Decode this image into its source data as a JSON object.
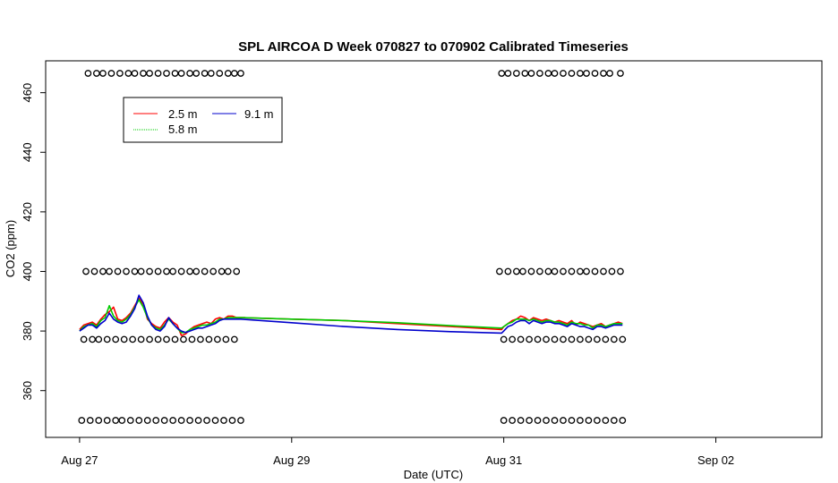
{
  "chart_data": {
    "type": "line",
    "title": "SPL AIRCOA D  Week 070827 to 070902  Calibrated Timeseries",
    "xlabel": "Date (UTC)",
    "ylabel": "CO2 (ppm)",
    "x_unit": "days since Aug 27 00:00 UTC",
    "xlim": [
      -0.32,
      7.0
    ],
    "ylim": [
      344.3,
      470.7
    ],
    "x_ticks": [
      {
        "value": 0,
        "label": "Aug 27"
      },
      {
        "value": 2,
        "label": "Aug 29"
      },
      {
        "value": 4,
        "label": "Aug 31"
      },
      {
        "value": 6,
        "label": "Sep 02"
      }
    ],
    "y_ticks": [
      360,
      380,
      400,
      420,
      440,
      460
    ],
    "grid": false,
    "legend_position": "top-left",
    "series": [
      {
        "name": "2.5 m",
        "color": "#ff0000",
        "x": [
          0.0,
          0.04,
          0.08,
          0.12,
          0.16,
          0.2,
          0.24,
          0.28,
          0.32,
          0.36,
          0.4,
          0.44,
          0.48,
          0.52,
          0.56,
          0.6,
          0.64,
          0.68,
          0.72,
          0.76,
          0.8,
          0.84,
          0.88,
          0.92,
          0.96,
          1.0,
          1.04,
          1.08,
          1.12,
          1.16,
          1.2,
          1.24,
          1.28,
          1.32,
          1.36,
          1.4,
          1.44,
          1.48,
          1.52,
          1.56,
          1.5,
          2.0,
          2.5,
          3.0,
          3.5,
          3.98,
          4.0,
          4.04,
          4.08,
          4.12,
          4.16,
          4.2,
          4.24,
          4.28,
          4.32,
          4.36,
          4.4,
          4.44,
          4.48,
          4.52,
          4.56,
          4.6,
          4.64,
          4.68,
          4.72,
          4.76,
          4.8,
          4.84,
          4.88,
          4.92,
          4.96,
          5.0,
          5.04,
          5.08,
          5.12
        ],
        "y": [
          380.5,
          382.0,
          382.5,
          383.0,
          382.0,
          384.0,
          385.5,
          386.5,
          388.0,
          384.0,
          383.5,
          384.5,
          386.0,
          388.5,
          391.0,
          389.0,
          384.0,
          382.5,
          381.5,
          381.0,
          383.0,
          384.5,
          383.0,
          382.0,
          378.5,
          379.0,
          380.5,
          381.5,
          382.0,
          382.5,
          383.0,
          382.5,
          384.0,
          384.5,
          384.0,
          385.0,
          385.0,
          384.5,
          384.5,
          384.5,
          384.5,
          384.0,
          383.5,
          382.5,
          381.5,
          380.5,
          381.5,
          382.5,
          383.5,
          384.0,
          385.0,
          384.5,
          383.5,
          384.5,
          384.0,
          383.5,
          384.0,
          383.5,
          383.0,
          383.5,
          383.0,
          382.5,
          383.5,
          382.0,
          383.0,
          382.5,
          382.0,
          381.5,
          382.0,
          382.5,
          381.5,
          382.0,
          382.5,
          383.0,
          382.5
        ]
      },
      {
        "name": "5.8 m",
        "color": "#00cc00",
        "x": [
          0.0,
          0.04,
          0.08,
          0.12,
          0.16,
          0.2,
          0.24,
          0.28,
          0.32,
          0.36,
          0.4,
          0.44,
          0.48,
          0.52,
          0.56,
          0.6,
          0.64,
          0.68,
          0.72,
          0.76,
          0.8,
          0.84,
          0.88,
          0.92,
          0.96,
          1.0,
          1.04,
          1.08,
          1.12,
          1.16,
          1.2,
          1.24,
          1.28,
          1.32,
          1.36,
          1.4,
          1.44,
          1.48,
          1.52,
          2.0,
          2.5,
          3.0,
          3.5,
          3.98,
          4.0,
          4.04,
          4.08,
          4.12,
          4.16,
          4.2,
          4.24,
          4.28,
          4.32,
          4.36,
          4.4,
          4.44,
          4.48,
          4.52,
          4.56,
          4.6,
          4.64,
          4.68,
          4.72,
          4.76,
          4.8,
          4.84,
          4.88,
          4.92,
          4.96,
          5.0,
          5.04,
          5.08,
          5.12
        ],
        "y": [
          380.0,
          381.5,
          382.0,
          382.5,
          381.5,
          383.5,
          384.5,
          388.5,
          385.0,
          383.5,
          383.0,
          384.0,
          385.5,
          388.0,
          390.5,
          388.0,
          384.5,
          382.0,
          381.0,
          380.5,
          382.0,
          384.0,
          382.5,
          381.0,
          379.5,
          379.5,
          380.5,
          381.0,
          381.5,
          382.0,
          382.0,
          382.5,
          383.0,
          384.0,
          384.0,
          384.5,
          384.5,
          384.5,
          384.5,
          384.0,
          383.5,
          382.8,
          381.8,
          381.0,
          381.5,
          382.5,
          383.0,
          384.0,
          384.0,
          384.0,
          383.5,
          384.0,
          383.5,
          383.0,
          383.5,
          383.5,
          383.0,
          383.0,
          382.5,
          382.0,
          383.0,
          382.5,
          382.5,
          382.0,
          382.0,
          381.0,
          382.0,
          382.0,
          381.5,
          382.0,
          382.5,
          382.5,
          382.5
        ]
      },
      {
        "name": "9.1 m",
        "color": "#0000cc",
        "x": [
          0.0,
          0.04,
          0.08,
          0.12,
          0.16,
          0.2,
          0.24,
          0.28,
          0.32,
          0.36,
          0.4,
          0.44,
          0.48,
          0.52,
          0.56,
          0.6,
          0.64,
          0.68,
          0.72,
          0.76,
          0.8,
          0.84,
          0.88,
          0.92,
          0.96,
          1.0,
          1.04,
          1.08,
          1.12,
          1.16,
          1.2,
          1.24,
          1.28,
          1.32,
          1.36,
          1.4,
          1.44,
          1.48,
          1.52,
          2.0,
          2.5,
          3.0,
          3.5,
          3.98,
          4.0,
          4.04,
          4.08,
          4.12,
          4.16,
          4.2,
          4.24,
          4.28,
          4.32,
          4.36,
          4.4,
          4.44,
          4.48,
          4.52,
          4.56,
          4.6,
          4.64,
          4.68,
          4.72,
          4.76,
          4.8,
          4.84,
          4.88,
          4.92,
          4.96,
          5.0,
          5.04,
          5.08,
          5.12
        ],
        "y": [
          380.0,
          381.0,
          382.0,
          382.0,
          381.0,
          382.5,
          383.5,
          386.0,
          384.0,
          383.0,
          382.5,
          383.0,
          385.0,
          387.5,
          392.0,
          389.5,
          385.0,
          382.0,
          380.5,
          380.0,
          381.5,
          384.5,
          382.5,
          381.0,
          380.0,
          379.5,
          380.0,
          380.5,
          381.0,
          381.0,
          381.5,
          382.0,
          382.5,
          383.5,
          384.0,
          384.0,
          384.0,
          384.0,
          384.0,
          382.8,
          381.5,
          380.5,
          379.8,
          379.3,
          380.0,
          381.5,
          382.0,
          383.0,
          383.5,
          383.5,
          382.5,
          383.5,
          383.0,
          382.5,
          383.0,
          383.0,
          382.5,
          382.5,
          382.0,
          381.5,
          382.5,
          382.0,
          381.5,
          381.5,
          381.0,
          380.5,
          381.5,
          381.5,
          381.0,
          381.5,
          382.0,
          382.0,
          382.0
        ]
      }
    ],
    "markers": {
      "symbol": "open-circle",
      "color": "#000000",
      "groups": [
        {
          "y": 466.5,
          "x": [
            0.08,
            0.16,
            0.22,
            0.3,
            0.38,
            0.46,
            0.52,
            0.6,
            0.66,
            0.74,
            0.82,
            0.9,
            0.96,
            1.04,
            1.1,
            1.18,
            1.24,
            1.32,
            1.4,
            1.46,
            1.52,
            3.98,
            4.04,
            4.12,
            4.2,
            4.26,
            4.34,
            4.42,
            4.48,
            4.56,
            4.64,
            4.72,
            4.78,
            4.86,
            4.94,
            5.0,
            5.1
          ]
        },
        {
          "y": 400.0,
          "x": [
            0.06,
            0.14,
            0.22,
            0.28,
            0.36,
            0.44,
            0.52,
            0.58,
            0.66,
            0.74,
            0.82,
            0.88,
            0.96,
            1.04,
            1.1,
            1.18,
            1.26,
            1.34,
            1.4,
            1.48,
            3.96,
            4.04,
            4.12,
            4.18,
            4.26,
            4.34,
            4.42,
            4.48,
            4.56,
            4.64,
            4.72,
            4.78,
            4.86,
            4.94,
            5.02,
            5.1
          ]
        },
        {
          "y": 377.2,
          "x": [
            0.04,
            0.12,
            0.18,
            0.26,
            0.34,
            0.42,
            0.5,
            0.58,
            0.66,
            0.74,
            0.82,
            0.9,
            0.98,
            1.06,
            1.14,
            1.22,
            1.3,
            1.38,
            1.46,
            4.0,
            4.08,
            4.16,
            4.24,
            4.32,
            4.4,
            4.48,
            4.56,
            4.64,
            4.72,
            4.8,
            4.88,
            4.96,
            5.04,
            5.12
          ]
        },
        {
          "y": 350.0,
          "x": [
            0.02,
            0.1,
            0.18,
            0.26,
            0.34,
            0.4,
            0.48,
            0.56,
            0.64,
            0.72,
            0.8,
            0.88,
            0.96,
            1.04,
            1.12,
            1.2,
            1.28,
            1.36,
            1.44,
            1.52,
            4.0,
            4.08,
            4.16,
            4.24,
            4.32,
            4.4,
            4.48,
            4.56,
            4.64,
            4.72,
            4.8,
            4.88,
            4.96,
            5.04,
            5.12
          ]
        }
      ]
    }
  }
}
